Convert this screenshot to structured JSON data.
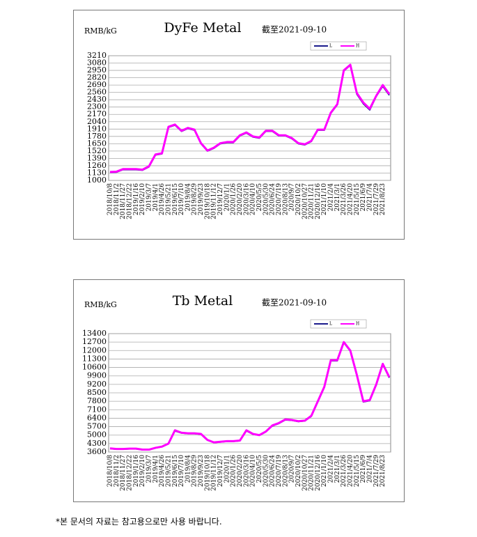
{
  "chart_data": [
    {
      "type": "line",
      "title": "DyFe Metal",
      "unit_label": "RMB/kG",
      "subtitle": "截至2021-09-10",
      "categories": [
        "2018/10/8",
        "2018/11/2",
        "2018/11/27",
        "2018/12/22",
        "2019/1/16",
        "2019/2/10",
        "2019/3/7",
        "2019/4/1",
        "2019/4/26",
        "2019/5/21",
        "2019/6/15",
        "2019/7/10",
        "2019/8/4",
        "2019/8/29",
        "2019/9/23",
        "2019/10/18",
        "2019/11/12",
        "2019/12/7",
        "2020/1/1",
        "2020/1/26",
        "2020/2/20",
        "2020/3/16",
        "2020/4/10",
        "2020/5/5",
        "2020/5/30",
        "2020/6/24",
        "2020/7/19",
        "2020/8/13",
        "2020/9/7",
        "2020/10/2",
        "2020/10/27",
        "2020/11/21",
        "2020/12/16",
        "2021/1/10",
        "2021/2/4",
        "2021/3/1",
        "2021/3/26",
        "2021/4/20",
        "2021/5/15",
        "2021/6/9",
        "2021/7/4",
        "2021/7/29",
        "2021/8/23",
        null
      ],
      "series": [
        {
          "name": "L",
          "color": "#1a1a8c",
          "values": [
            1140,
            1145,
            1190,
            1190,
            1190,
            1180,
            1240,
            1450,
            1470,
            1940,
            1980,
            1870,
            1920,
            1890,
            1650,
            1520,
            1570,
            1650,
            1670,
            1670,
            1790,
            1840,
            1770,
            1750,
            1870,
            1870,
            1790,
            1790,
            1740,
            1650,
            1630,
            1690,
            1890,
            1890,
            2190,
            2340,
            2940,
            3040,
            2530,
            2360,
            2250,
            2490,
            2670,
            2510
          ]
        },
        {
          "name": "H",
          "color": "#ff00ff",
          "values": [
            1150,
            1155,
            1200,
            1200,
            1200,
            1190,
            1250,
            1460,
            1480,
            1950,
            1990,
            1880,
            1930,
            1900,
            1660,
            1530,
            1580,
            1660,
            1680,
            1680,
            1800,
            1850,
            1780,
            1760,
            1880,
            1880,
            1800,
            1800,
            1750,
            1660,
            1640,
            1700,
            1900,
            1900,
            2200,
            2350,
            2950,
            3050,
            2550,
            2380,
            2270,
            2500,
            2690,
            2530
          ]
        }
      ],
      "ylim": [
        1000,
        3210
      ],
      "yticks": [
        1000,
        1130,
        1260,
        1390,
        1520,
        1650,
        1780,
        1910,
        2040,
        2170,
        2300,
        2430,
        2560,
        2690,
        2820,
        2950,
        3080,
        3210
      ],
      "grid": true,
      "legend": "top-right"
    },
    {
      "type": "line",
      "title": "Tb Metal",
      "unit_label": "RMB/kG",
      "subtitle": "截至2021-09-10",
      "categories": [
        "2018/10/8",
        "2018/11/2",
        "2018/11/27",
        "2018/12/22",
        "2019/1/16",
        "2019/2/10",
        "2019/3/7",
        "2019/4/1",
        "2019/4/26",
        "2019/5/21",
        "2019/6/15",
        "2019/7/10",
        "2019/8/4",
        "2019/8/29",
        "2019/9/23",
        "2019/10/18",
        "2019/11/12",
        "2019/12/7",
        "2020/1/1",
        "2020/1/26",
        "2020/2/20",
        "2020/3/16",
        "2020/4/10",
        "2020/5/5",
        "2020/5/30",
        "2020/6/24",
        "2020/7/19",
        "2020/8/13",
        "2020/9/7",
        "2020/10/2",
        "2020/10/27",
        "2020/11/21",
        "2020/12/16",
        "2021/1/10",
        "2021/2/4",
        "2021/3/1",
        "2021/3/26",
        "2021/4/20",
        "2021/5/15",
        "2021/6/9",
        "2021/7/4",
        "2021/7/29",
        "2021/8/23",
        null
      ],
      "series": [
        {
          "name": "L",
          "color": "#1a1a8c",
          "values": [
            3880,
            3830,
            3830,
            3860,
            3860,
            3780,
            3780,
            3930,
            4030,
            4280,
            5350,
            5170,
            5120,
            5120,
            5070,
            4580,
            4380,
            4430,
            4480,
            4480,
            4530,
            5350,
            5070,
            4980,
            5270,
            5760,
            5960,
            6260,
            6220,
            6120,
            6170,
            6560,
            7750,
            8950,
            11150,
            11150,
            12650,
            11950,
            9950,
            7750,
            7850,
            9150,
            10850,
            9750
          ]
        },
        {
          "name": "H",
          "color": "#ff00ff",
          "values": [
            3900,
            3850,
            3850,
            3880,
            3880,
            3800,
            3800,
            3950,
            4050,
            4300,
            5400,
            5200,
            5150,
            5150,
            5100,
            4600,
            4400,
            4450,
            4500,
            4500,
            4550,
            5400,
            5100,
            5000,
            5300,
            5800,
            6000,
            6300,
            6250,
            6150,
            6200,
            6600,
            7800,
            9000,
            11200,
            11200,
            12700,
            12000,
            10000,
            7800,
            7900,
            9200,
            10900,
            9800
          ]
        }
      ],
      "ylim": [
        3600,
        13400
      ],
      "yticks": [
        3600,
        4300,
        5000,
        5700,
        6400,
        7100,
        7800,
        8500,
        9200,
        9900,
        10600,
        11300,
        12000,
        12700,
        13400
      ],
      "grid": true,
      "legend": "top-right"
    }
  ],
  "footnote": "*본 문서의 자료는 참고용으로만 사용 바랍니다."
}
